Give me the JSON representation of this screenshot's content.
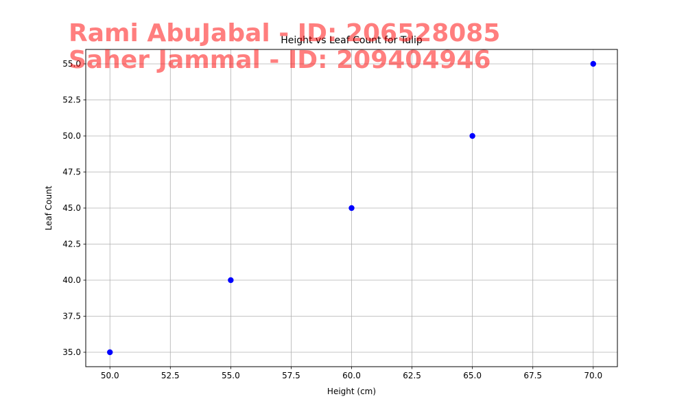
{
  "chart_data": {
    "type": "scatter",
    "title": "Height vs Leaf Count for Tulip",
    "xlabel": "Height (cm)",
    "ylabel": "Leaf Count",
    "xlim": [
      49,
      71
    ],
    "ylim": [
      34,
      56
    ],
    "xticks": [
      "50.0",
      "52.5",
      "55.0",
      "57.5",
      "60.0",
      "62.5",
      "65.0",
      "67.5",
      "70.0"
    ],
    "yticks": [
      "35.0",
      "37.5",
      "40.0",
      "42.5",
      "45.0",
      "47.5",
      "50.0",
      "52.5",
      "55.0"
    ],
    "grid": true,
    "legend": "none",
    "marker_color": "#0000ff",
    "x": [
      50,
      55,
      60,
      65,
      70
    ],
    "y": [
      35,
      40,
      45,
      50,
      55
    ]
  },
  "overlay": {
    "lines": [
      "Rami AbuJabal - ID: 206528085",
      "Saher Jammal - ID: 209404946"
    ],
    "color": "#ff0000"
  }
}
